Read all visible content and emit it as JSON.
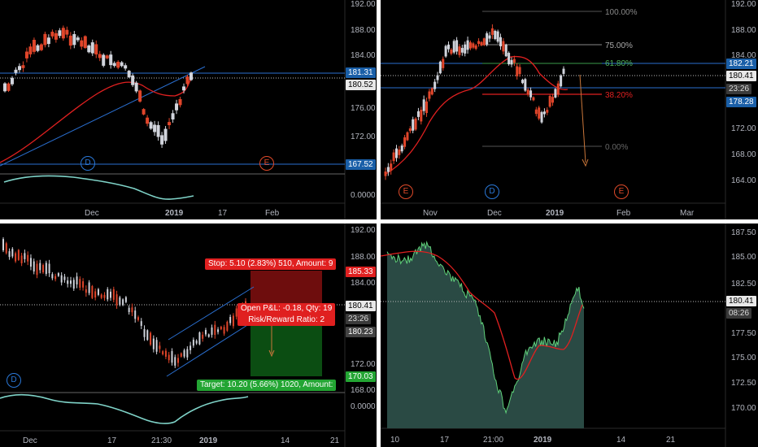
{
  "panes": {
    "tl": {
      "price_ticks": [
        "192.00",
        "188.00",
        "184.00",
        "176.00",
        "172.00",
        "0.0000"
      ],
      "time_ticks": [
        "Dec",
        "2019",
        "17",
        "Feb"
      ],
      "tags": {
        "a": "181.31",
        "b": "180.52",
        "c": "167.52"
      },
      "badges": {
        "d": "D",
        "e": "E"
      },
      "colors": {
        "up": "#d1d4dc",
        "down": "#e0452a",
        "ma": "#e02020",
        "trend": "#2a6fd0",
        "osc": "#7fd3c8"
      }
    },
    "tr": {
      "price_ticks": [
        "192.00",
        "188.00",
        "184.00",
        "172.00",
        "168.00",
        "164.00"
      ],
      "time_ticks": [
        "Nov",
        "Dec",
        "2019",
        "Feb",
        "Mar"
      ],
      "tags": {
        "a": "182.21",
        "b": "180.41",
        "c": "23:26",
        "d": "178.28"
      },
      "fib": {
        "f100": "100.00%",
        "f75": "75.00%",
        "f618": "61.80%",
        "f382": "38.20%",
        "f0": "0.00%"
      },
      "badges": {
        "e1": "E",
        "d": "D",
        "e2": "E"
      }
    },
    "bl": {
      "price_ticks": [
        "192.00",
        "188.00",
        "184.00",
        "172.00",
        "168.00",
        "0.0000"
      ],
      "time_ticks": [
        "Dec",
        "17",
        "21:30",
        "2019",
        "14",
        "21"
      ],
      "tags": {
        "a": "185.33",
        "b": "180.41",
        "c": "23:26",
        "d": "180.23",
        "e": "170.03"
      },
      "stop_label": "Stop: 5.10 (2.83%) 510, Amount: 9",
      "target_label": "Target: 10.20 (5.66%) 1020, Amount:",
      "pnl_label": "Open P&L: -0.18, Qty: 19",
      "rr_label": "Risk/Reward Ratio: 2",
      "badges": {
        "d": "D"
      }
    },
    "br": {
      "price_ticks": [
        "187.50",
        "185.00",
        "182.50",
        "177.50",
        "175.00",
        "172.50",
        "170.00"
      ],
      "time_ticks": [
        "10",
        "17",
        "21:00",
        "2019",
        "14",
        "21"
      ],
      "tags": {
        "a": "180.41",
        "b": "08:26"
      }
    }
  }
}
